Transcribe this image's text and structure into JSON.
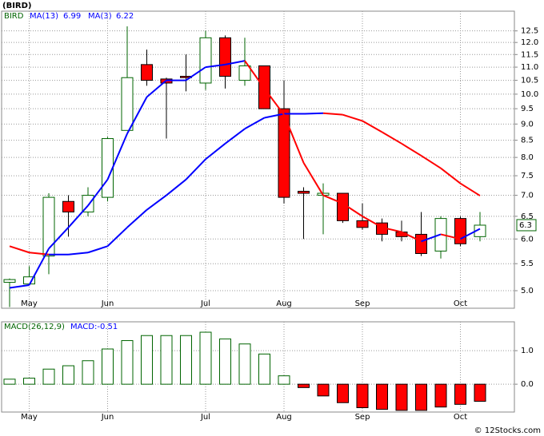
{
  "title": "(BIRD)",
  "footer": "© 12Stocks.com",
  "chart_data": [
    {
      "type": "candlestick",
      "series_label": "BIRD",
      "categories": [
        null,
        "May",
        null,
        null,
        null,
        "Jun",
        null,
        null,
        null,
        null,
        "Jul",
        null,
        null,
        null,
        "Aug",
        null,
        null,
        null,
        "Sep",
        null,
        null,
        null,
        null,
        "Oct",
        null
      ],
      "open": [
        5.15,
        5.12,
        5.65,
        6.85,
        6.6,
        6.95,
        8.8,
        11.1,
        10.55,
        10.65,
        10.4,
        12.2,
        10.5,
        11.05,
        9.5,
        7.1,
        7.0,
        7.05,
        6.4,
        6.35,
        6.15,
        6.1,
        5.75,
        6.45,
        6.05
      ],
      "high": [
        5.22,
        5.45,
        7.05,
        7.0,
        7.2,
        8.6,
        12.7,
        11.7,
        10.6,
        11.5,
        12.5,
        12.3,
        12.2,
        11.05,
        10.5,
        7.2,
        7.3,
        7.05,
        6.8,
        6.45,
        6.4,
        6.6,
        6.5,
        6.5,
        6.6
      ],
      "low": [
        4.72,
        5.1,
        5.3,
        6.05,
        6.5,
        6.85,
        8.8,
        10.3,
        8.55,
        10.1,
        10.15,
        10.2,
        10.3,
        9.5,
        6.8,
        6.0,
        6.1,
        6.35,
        6.2,
        5.95,
        5.95,
        5.65,
        5.6,
        5.85,
        5.95
      ],
      "close": [
        5.2,
        5.25,
        6.95,
        6.6,
        7.0,
        8.55,
        10.6,
        10.5,
        10.4,
        10.6,
        12.2,
        10.65,
        11.05,
        9.5,
        6.95,
        7.05,
        7.05,
        6.4,
        6.25,
        6.1,
        6.05,
        5.7,
        6.45,
        5.9,
        6.3
      ],
      "up_color": "#006400",
      "down_color": "#ff0000",
      "series": [
        {
          "name": "MA(13)",
          "last": 6.99,
          "color": "#0000ff",
          "values": [
            5.85,
            5.72,
            5.68,
            5.68,
            5.72,
            5.85,
            6.25,
            6.65,
            7.0,
            7.4,
            7.95,
            8.4,
            8.85,
            9.2,
            9.33,
            9.33,
            9.35,
            9.3,
            9.1,
            8.75,
            8.4,
            8.05,
            7.7,
            7.3,
            6.99
          ]
        },
        {
          "name": "MA(3)",
          "last": 6.22,
          "color": "#0000ff",
          "values": [
            5.05,
            5.1,
            5.8,
            6.25,
            6.75,
            7.4,
            8.7,
            9.9,
            10.5,
            10.5,
            11.0,
            11.1,
            11.25,
            10.2,
            9.3,
            7.85,
            7.0,
            6.8,
            6.5,
            6.25,
            6.15,
            5.95,
            6.1,
            6.0,
            6.22
          ]
        }
      ],
      "line_up_color": "#0000ff",
      "line_down_color": "#ff0000",
      "last_price": 6.3,
      "log_scale": true,
      "ylim": [
        4.7,
        13.4
      ],
      "yticks": [
        {
          "value": 5,
          "label": "5.0"
        },
        5.5,
        {
          "value": 6,
          "label": "6.0"
        },
        6.5,
        {
          "value": 7,
          "label": "7.0"
        },
        7.5,
        {
          "value": 8,
          "label": "8.0"
        },
        8.5,
        {
          "value": 9,
          "label": "9.0"
        },
        9.5,
        {
          "value": 10,
          "label": "10.0"
        },
        10.5,
        {
          "value": 11,
          "label": "11.0"
        },
        11.5,
        {
          "value": 12,
          "label": "12.0"
        },
        12.5
      ],
      "grid": true
    },
    {
      "type": "bar",
      "series_label": "MACD(26,12,9)",
      "annotation": "MACD:-0.51",
      "categories": [
        null,
        "May",
        null,
        null,
        null,
        "Jun",
        null,
        null,
        null,
        null,
        "Jul",
        null,
        null,
        null,
        "Aug",
        null,
        null,
        null,
        "Sep",
        null,
        null,
        null,
        null,
        "Oct",
        null
      ],
      "values": [
        0.15,
        0.18,
        0.45,
        0.55,
        0.7,
        1.05,
        1.3,
        1.45,
        1.45,
        1.45,
        1.55,
        1.35,
        1.2,
        0.9,
        0.25,
        -0.1,
        -0.35,
        -0.55,
        -0.7,
        -0.75,
        -0.78,
        -0.78,
        -0.68,
        -0.6,
        -0.51
      ],
      "up_color": "#006400",
      "down_color": "#ff0000",
      "ylim": [
        -0.83,
        1.86
      ],
      "yticks": [
        {
          "value": 0,
          "label": "0.0"
        },
        {
          "value": 1,
          "label": "1.0"
        }
      ],
      "grid": true
    }
  ]
}
